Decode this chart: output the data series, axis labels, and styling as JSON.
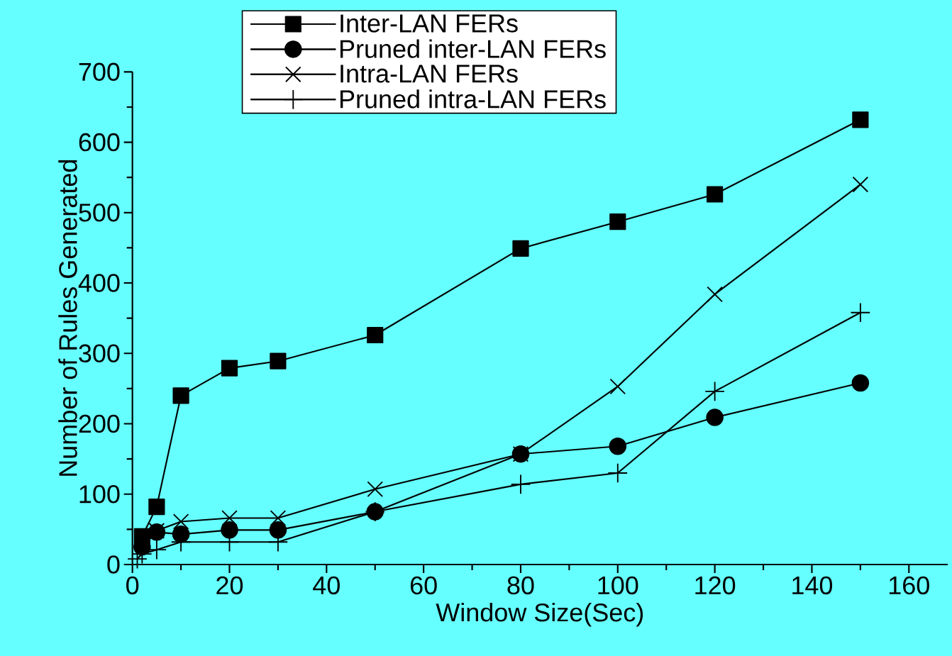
{
  "chart_data": {
    "type": "line",
    "xlabel": "Window Size(Sec)",
    "ylabel": "Number of Rules Generated",
    "x": [
      1,
      2,
      5,
      10,
      20,
      30,
      50,
      80,
      100,
      120,
      150
    ],
    "xlim": [
      0,
      168
    ],
    "ylim": [
      0,
      700
    ],
    "xticks": [
      0,
      20,
      40,
      60,
      80,
      100,
      120,
      140,
      160
    ],
    "yticks": [
      0,
      100,
      200,
      300,
      400,
      500,
      600,
      700
    ],
    "grid": false,
    "legend": "top",
    "line_style": "solid",
    "series": [
      {
        "name": "Inter-LAN FERs",
        "color": "#000000",
        "marker": "square",
        "values": [
          null,
          40,
          82,
          240,
          279,
          289,
          326,
          449,
          487,
          526,
          632
        ]
      },
      {
        "name": "Pruned inter-LAN FERs",
        "color": "#000000",
        "marker": "circle",
        "values": [
          null,
          25,
          46,
          43,
          49,
          49,
          75,
          157,
          168,
          209,
          258
        ]
      },
      {
        "name": "Intra-LAN FERs",
        "color": "#000000",
        "marker": "x",
        "values": [
          null,
          35,
          48,
          61,
          66,
          66,
          107,
          157,
          253,
          384,
          540
        ]
      },
      {
        "name": "Pruned intra-LAN FERs",
        "color": "#000000",
        "marker": "cross",
        "values": [
          8,
          15,
          21,
          32,
          32,
          32,
          75,
          114,
          130,
          246,
          358
        ]
      }
    ]
  }
}
